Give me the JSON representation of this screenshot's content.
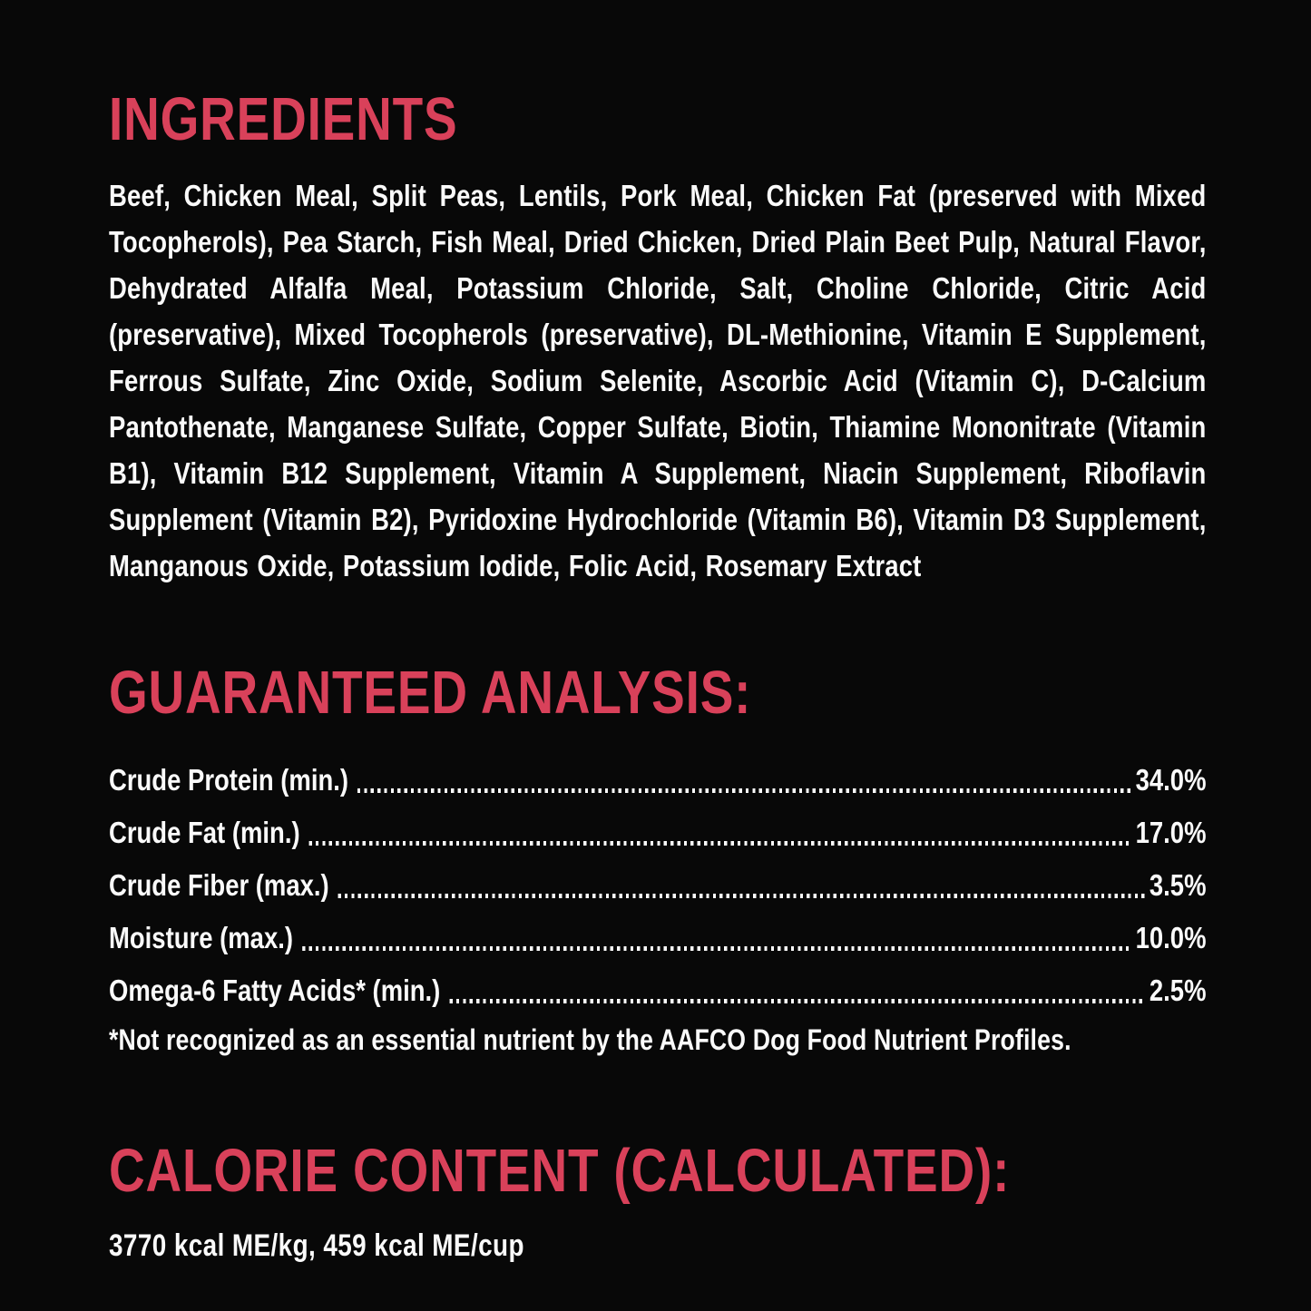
{
  "colors": {
    "background": "#080808",
    "accent_red": "#d9415a",
    "text_white": "#fafafa"
  },
  "ingredients": {
    "heading": "INGREDIENTS",
    "body": "Beef, Chicken Meal, Split Peas, Lentils, Pork Meal, Chicken Fat (preserved with Mixed Tocopherols), Pea Starch, Fish Meal, Dried Chicken, Dried Plain Beet Pulp, Natural Flavor, Dehydrated Alfalfa Meal, Potassium Chloride, Salt, Choline Chloride, Citric Acid (preservative), Mixed Tocopherols (preservative), DL-Methionine, Vitamin E Supplement, Ferrous Sulfate, Zinc Oxide, Sodium Selenite, Ascorbic Acid (Vitamin C), D-Calcium Pantothenate, Manganese Sulfate, Copper Sulfate, Biotin, Thiamine Mononitrate (Vitamin B1), Vitamin B12 Supplement, Vitamin A Supplement, Niacin Supplement, Riboflavin Supplement (Vitamin B2), Pyridoxine Hydrochloride (Vitamin B6), Vitamin D3 Supplement, Manganous Oxide, Potassium Iodide, Folic Acid, Rosemary Extract"
  },
  "guaranteed_analysis": {
    "heading": "GUARANTEED ANALYSIS:",
    "rows": [
      {
        "label": "Crude Protein (min.)",
        "value": "34.0%"
      },
      {
        "label": "Crude Fat (min.)",
        "value": "17.0%"
      },
      {
        "label": "Crude Fiber (max.)",
        "value": "3.5%"
      },
      {
        "label": "Moisture (max.)",
        "value": "10.0%"
      },
      {
        "label": "Omega-6 Fatty Acids* (min.)",
        "value": "2.5%"
      }
    ],
    "footnote": "*Not recognized as an essential nutrient by the AAFCO Dog Food Nutrient Profiles."
  },
  "calorie_content": {
    "heading": "CALORIE CONTENT (CALCULATED):",
    "value": "3770 kcal ME/kg, 459 kcal ME/cup"
  }
}
